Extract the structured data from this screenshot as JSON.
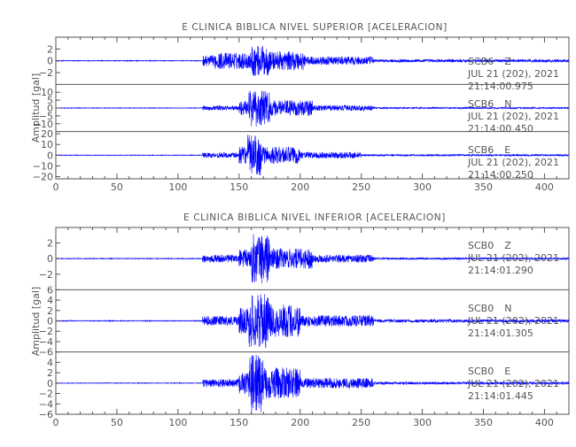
{
  "chart_data": [
    {
      "type": "line",
      "title": "E CLINICA BIBLICA NIVEL SUPERIOR [ACELERACION]",
      "ylabel": "Amplitud [gal]",
      "xlim": [
        0,
        420
      ],
      "x_ticks": [
        "0",
        "50",
        "100",
        "150",
        "200",
        "250",
        "300",
        "350",
        "400"
      ],
      "series_color": "#0000ff",
      "grid": false,
      "channels": [
        {
          "station": "SCB6",
          "component": "Z",
          "date_line": "JUL 21 (202), 2021",
          "time_line": "21:14:00.975",
          "ylim": [
            -4,
            4
          ],
          "y_ticks": [
            "2",
            "0",
            "−2"
          ],
          "segments": [
            [
              0,
              120,
              0.06
            ],
            [
              120,
              130,
              0.9
            ],
            [
              130,
              160,
              1.4
            ],
            [
              160,
              175,
              2.6
            ],
            [
              175,
              205,
              1.6
            ],
            [
              205,
              260,
              0.7
            ],
            [
              260,
              420,
              0.25
            ]
          ]
        },
        {
          "station": "SCB6",
          "component": "N",
          "date_line": "JUL 21 (202), 2021",
          "time_line": "21:14:00.450",
          "ylim": [
            -15,
            15
          ],
          "y_ticks": [
            "10",
            "5",
            "0",
            "−5",
            "−10"
          ],
          "segments": [
            [
              0,
              120,
              0.2
            ],
            [
              120,
              150,
              1.5
            ],
            [
              150,
              158,
              4.5
            ],
            [
              158,
              175,
              12
            ],
            [
              175,
              210,
              5
            ],
            [
              210,
              260,
              1.8
            ],
            [
              260,
              420,
              0.5
            ]
          ]
        },
        {
          "station": "SCB6",
          "component": "E",
          "date_line": "JUL 21 (202), 2021",
          "time_line": "21:14:00.250",
          "ylim": [
            -22,
            22
          ],
          "y_ticks": [
            "20",
            "10",
            "0",
            "−10",
            "−20"
          ],
          "segments": [
            [
              0,
              120,
              0.3
            ],
            [
              120,
              150,
              2.5
            ],
            [
              150,
              157,
              8
            ],
            [
              157,
              168,
              19
            ],
            [
              168,
              200,
              8
            ],
            [
              200,
              250,
              3
            ],
            [
              250,
              420,
              0.8
            ]
          ]
        }
      ]
    },
    {
      "type": "line",
      "title": "E CLINICA BIBLICA NIVEL INFERIOR [ACELERACION]",
      "ylabel": "Amplitud [gal]",
      "xlim": [
        0,
        420
      ],
      "x_ticks": [
        "0",
        "50",
        "100",
        "150",
        "200",
        "250",
        "300",
        "350",
        "400"
      ],
      "series_color": "#0000ff",
      "grid": false,
      "channels": [
        {
          "station": "SCB0",
          "component": "Z",
          "date_line": "JUL 21 (202), 2021",
          "time_line": "21:14:01.290",
          "ylim": [
            -4,
            4
          ],
          "y_ticks": [
            "2",
            "0",
            "−2"
          ],
          "segments": [
            [
              0,
              120,
              0.05
            ],
            [
              120,
              150,
              0.5
            ],
            [
              150,
              160,
              1.2
            ],
            [
              160,
              175,
              3.2
            ],
            [
              175,
              210,
              1.3
            ],
            [
              210,
              260,
              0.5
            ],
            [
              260,
              420,
              0.12
            ]
          ]
        },
        {
          "station": "SCB0",
          "component": "N",
          "date_line": "JUL 21 (202), 2021",
          "time_line": "21:14:01.305",
          "ylim": [
            -6,
            6
          ],
          "y_ticks": [
            "6",
            "4",
            "2",
            "0",
            "−2",
            "−4",
            "−6"
          ],
          "segments": [
            [
              0,
              120,
              0.08
            ],
            [
              120,
              150,
              0.9
            ],
            [
              150,
              158,
              2.5
            ],
            [
              158,
              175,
              5.2
            ],
            [
              175,
              200,
              3.2
            ],
            [
              200,
              260,
              1.1
            ],
            [
              260,
              420,
              0.3
            ]
          ]
        },
        {
          "station": "SCB0",
          "component": "E",
          "date_line": "JUL 21 (202), 2021",
          "time_line": "21:14:01.445",
          "ylim": [
            -6,
            6
          ],
          "y_ticks": [
            "4",
            "2",
            "0",
            "−2",
            "−4",
            "−6"
          ],
          "segments": [
            [
              0,
              120,
              0.06
            ],
            [
              120,
              150,
              0.8
            ],
            [
              150,
              158,
              2.2
            ],
            [
              158,
              170,
              5.6
            ],
            [
              170,
              200,
              3.0
            ],
            [
              200,
              260,
              1.0
            ],
            [
              260,
              420,
              0.25
            ]
          ]
        }
      ]
    }
  ]
}
